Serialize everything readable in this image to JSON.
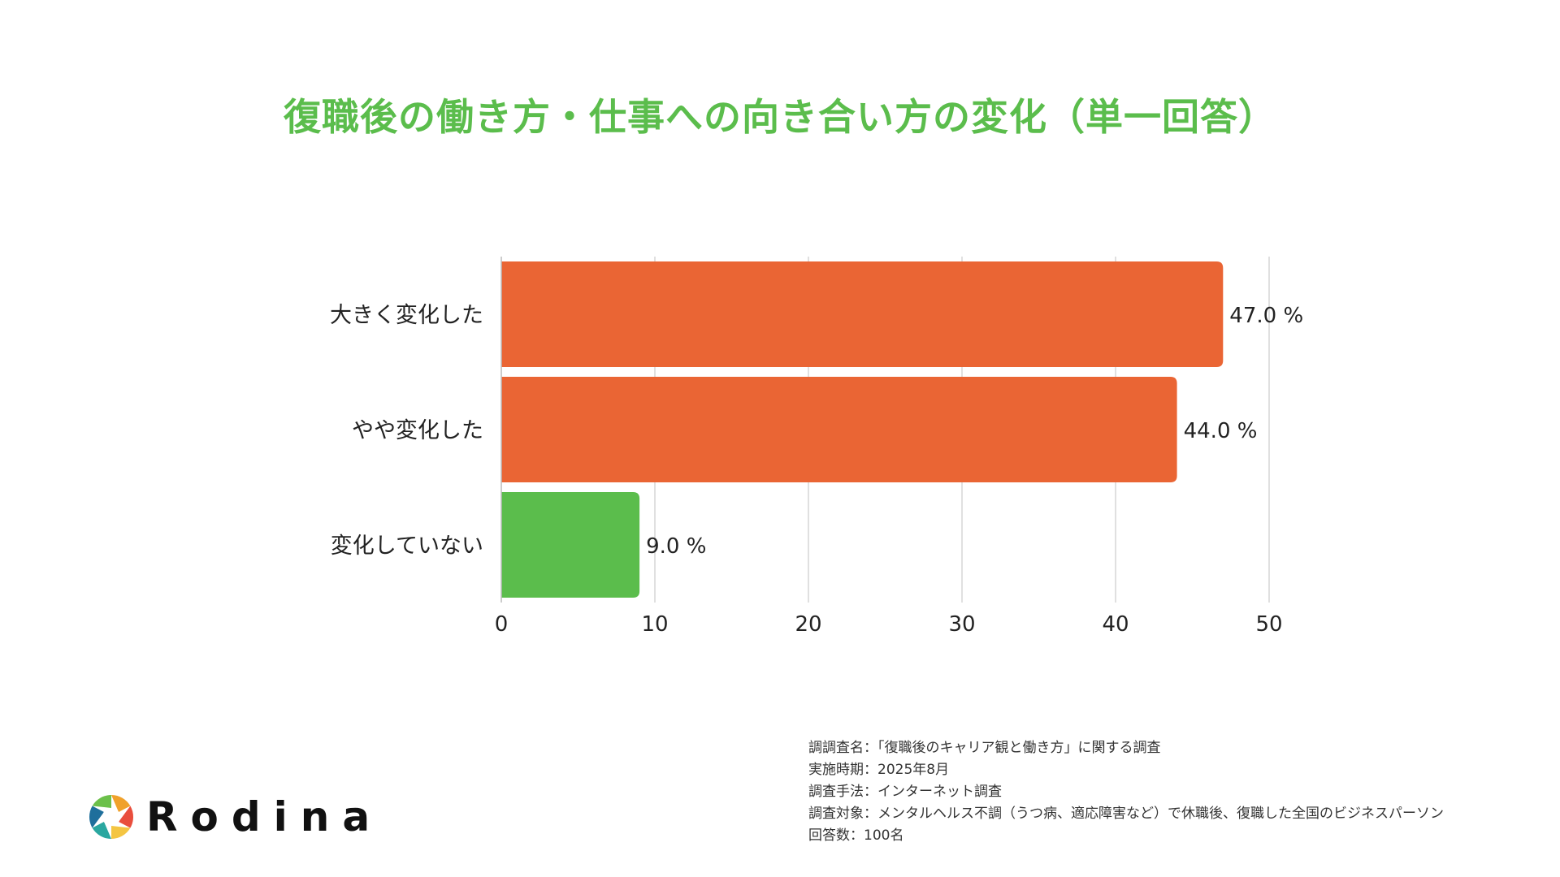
{
  "chart_data": {
    "type": "bar",
    "orientation": "horizontal",
    "title": "復職後の働き方・仕事への向き合い方の変化（単一回答）",
    "categories": [
      "大きく変化した",
      "やや変化した",
      "変化していない"
    ],
    "values": [
      47.0,
      44.0,
      9.0
    ],
    "value_labels": [
      "47.0 %",
      "44.0 %",
      "9.0 %"
    ],
    "bar_colors": [
      "#ea6534",
      "#ea6534",
      "#5bbd4c"
    ],
    "xlim": [
      0,
      50
    ],
    "xticks": [
      "0",
      "10",
      "20",
      "30",
      "40",
      "50"
    ],
    "grid": true,
    "legend": "none"
  },
  "colors": {
    "title": "#5bbd4c",
    "accent": "#ea6534",
    "green": "#5bbd4c",
    "grid": "#d6d6d6"
  },
  "footnote": {
    "lines": [
      "調調査名：「復職後のキャリア観と働き方」に関する調査",
      "実施時期：2025年8月",
      "調査手法：インターネット調査",
      "調査対象：メンタルヘルス不調（うつ病、適応障害など）で休職後、復職した全国のビジネスパーソン",
      "回答数：100名"
    ]
  },
  "logo": {
    "text": "Rodina",
    "icon": "aperture-logo-icon"
  }
}
